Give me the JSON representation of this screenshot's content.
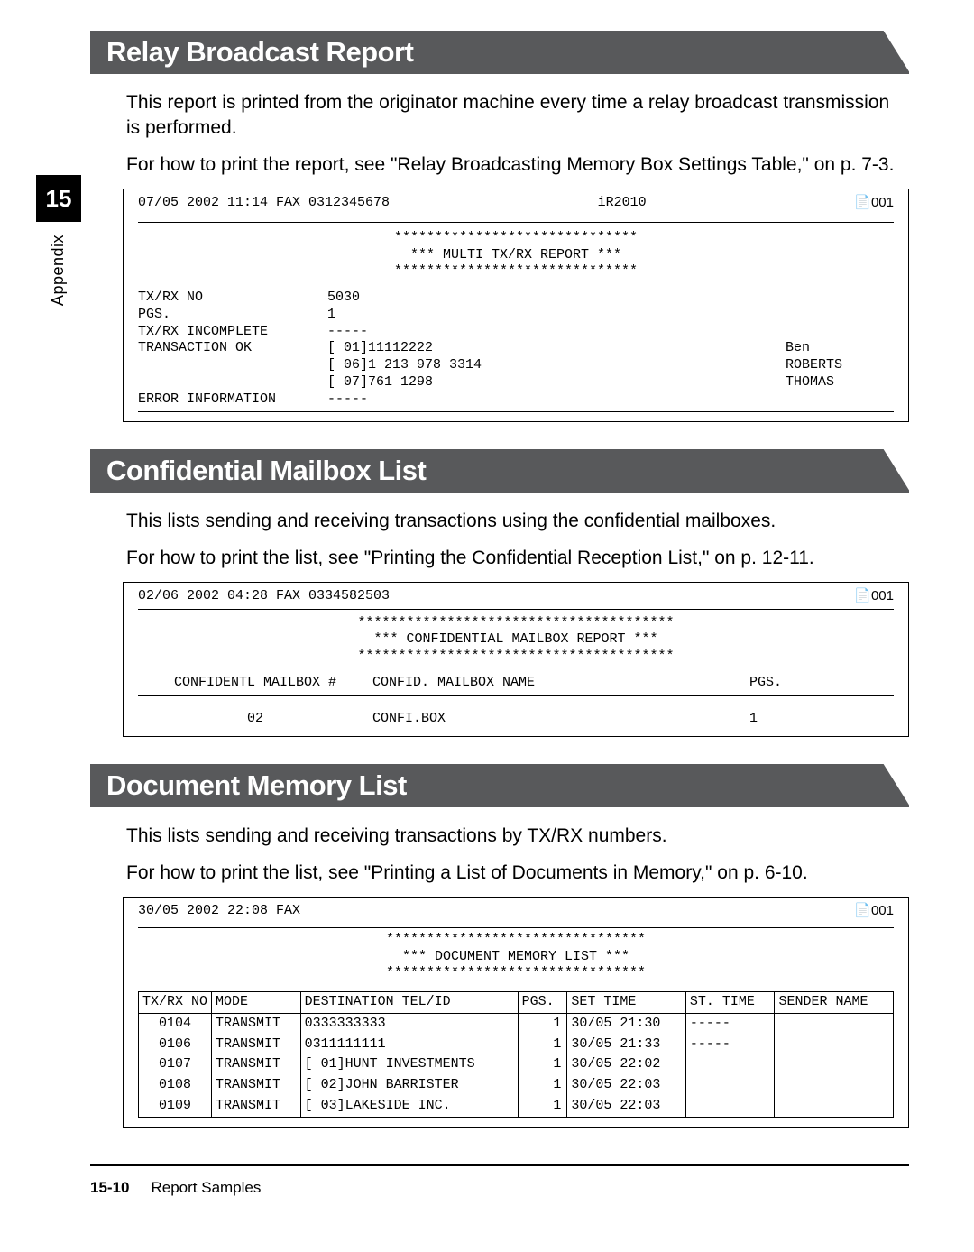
{
  "sideTab": {
    "chapter": "15",
    "label": "Appendix"
  },
  "sections": [
    {
      "title": "Relay Broadcast Report",
      "para1": "This report is printed from the originator machine every time a relay broadcast transmission is performed.",
      "para2": "For how to print the report, see \"Relay Broadcasting Memory Box Settings Table,\" on p. 7-3."
    },
    {
      "title": "Confidential Mailbox List",
      "para1": "This lists sending and receiving transactions using the confidential mailboxes.",
      "para2": "For how to print the list, see \"Printing the Confidential Reception List,\" on p. 12-11."
    },
    {
      "title": "Document Memory List",
      "para1": "This lists sending and receiving transactions by TX/RX numbers.",
      "para2": "For how to print the list, see \"Printing a List of Documents in Memory,\" on p. 6-10."
    }
  ],
  "relay": {
    "headerLeft": "07/05 2002 11:14 FAX  0312345678",
    "headerMid": "iR2010",
    "headerRight": "📄001",
    "starsTop": "******************************",
    "titleLine": "***   MULTI TX/RX REPORT   ***",
    "starsBot": "******************************",
    "rows": [
      {
        "label": "TX/RX NO",
        "val": "5030",
        "name": ""
      },
      {
        "label": "PGS.",
        "val": "  1",
        "name": ""
      },
      {
        "label": "TX/RX INCOMPLETE",
        "val": "-----",
        "name": ""
      },
      {
        "label": "TRANSACTION OK",
        "val": "[  01]11112222",
        "name": "Ben"
      },
      {
        "label": "",
        "val": "[  06]1 213 978 3314",
        "name": "ROBERTS"
      },
      {
        "label": "",
        "val": "[  07]761 1298",
        "name": "THOMAS"
      },
      {
        "label": "ERROR INFORMATION",
        "val": "-----",
        "name": ""
      }
    ]
  },
  "mailbox": {
    "headerLeft": "02/06 2002 04:28 FAX  0334582503",
    "headerRight": "📄001",
    "starsTop": "***************************************",
    "titleLine": "***   CONFIDENTIAL MAILBOX REPORT   ***",
    "starsBot": "***************************************",
    "colHeaders": {
      "c1": "CONFIDENTL MAILBOX #",
      "c2": "CONFID. MAILBOX NAME",
      "c3": "PGS."
    },
    "dataRow": {
      "c1": "02",
      "c2": "CONFI.BOX",
      "c3": "  1"
    }
  },
  "docmem": {
    "headerLeft": "30/05 2002 22:08 FAX",
    "headerRight": "📄001",
    "starsTop": "********************************",
    "titleLine": "***   DOCUMENT MEMORY LIST   ***",
    "starsBot": "********************************",
    "columns": [
      "TX/RX NO",
      "MODE",
      "DESTINATION TEL/ID",
      "PGS.",
      "SET TIME",
      "ST. TIME",
      "SENDER NAME"
    ],
    "rows": [
      {
        "c1": "0104",
        "c2": "TRANSMIT",
        "c3": "0333333333",
        "c4": "1",
        "c5": "30/05 21:30",
        "c6": "-----",
        "c7": ""
      },
      {
        "c1": "0106",
        "c2": "TRANSMIT",
        "c3": "0311111111",
        "c4": "1",
        "c5": "30/05 21:33",
        "c6": "-----",
        "c7": ""
      },
      {
        "c1": "0107",
        "c2": "TRANSMIT",
        "c3": "[  01]HUNT INVESTMENTS",
        "c4": "1",
        "c5": "30/05 22:02",
        "c6": "",
        "c7": ""
      },
      {
        "c1": "0108",
        "c2": "TRANSMIT",
        "c3": "[  02]JOHN BARRISTER",
        "c4": "1",
        "c5": "30/05 22:03",
        "c6": "",
        "c7": ""
      },
      {
        "c1": "0109",
        "c2": "TRANSMIT",
        "c3": "[  03]LAKESIDE INC.",
        "c4": "1",
        "c5": "30/05 22:03",
        "c6": "",
        "c7": ""
      }
    ]
  },
  "footer": {
    "page": "15-10",
    "title": "Report Samples"
  }
}
